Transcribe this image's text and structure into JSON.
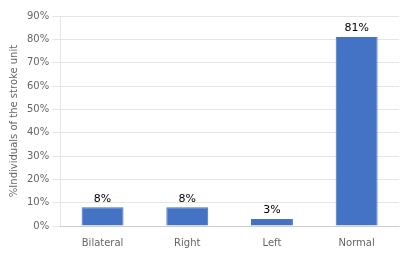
{
  "chart_data": {
    "type": "bar",
    "ylabel": "%Individuals of the stroke unit",
    "categories": [
      "Bilateral",
      "Right",
      "Left",
      "Normal"
    ],
    "values": [
      8,
      8,
      3,
      81
    ],
    "value_labels": [
      "8%",
      "8%",
      "3%",
      "81%"
    ],
    "data_labels": true,
    "color": "#4472C4",
    "ylim": [
      0,
      90
    ],
    "yticks": [
      {
        "value": 0,
        "label": "0%"
      },
      {
        "value": 10,
        "label": "10%"
      },
      {
        "value": 20,
        "label": "20%"
      },
      {
        "value": 30,
        "label": "30%"
      },
      {
        "value": 40,
        "label": "40%"
      },
      {
        "value": 50,
        "label": "50%"
      },
      {
        "value": 60,
        "label": "60%"
      },
      {
        "value": 70,
        "label": "70%"
      },
      {
        "value": 80,
        "label": "80%"
      },
      {
        "value": 90,
        "label": "90%"
      }
    ],
    "grid": true
  }
}
